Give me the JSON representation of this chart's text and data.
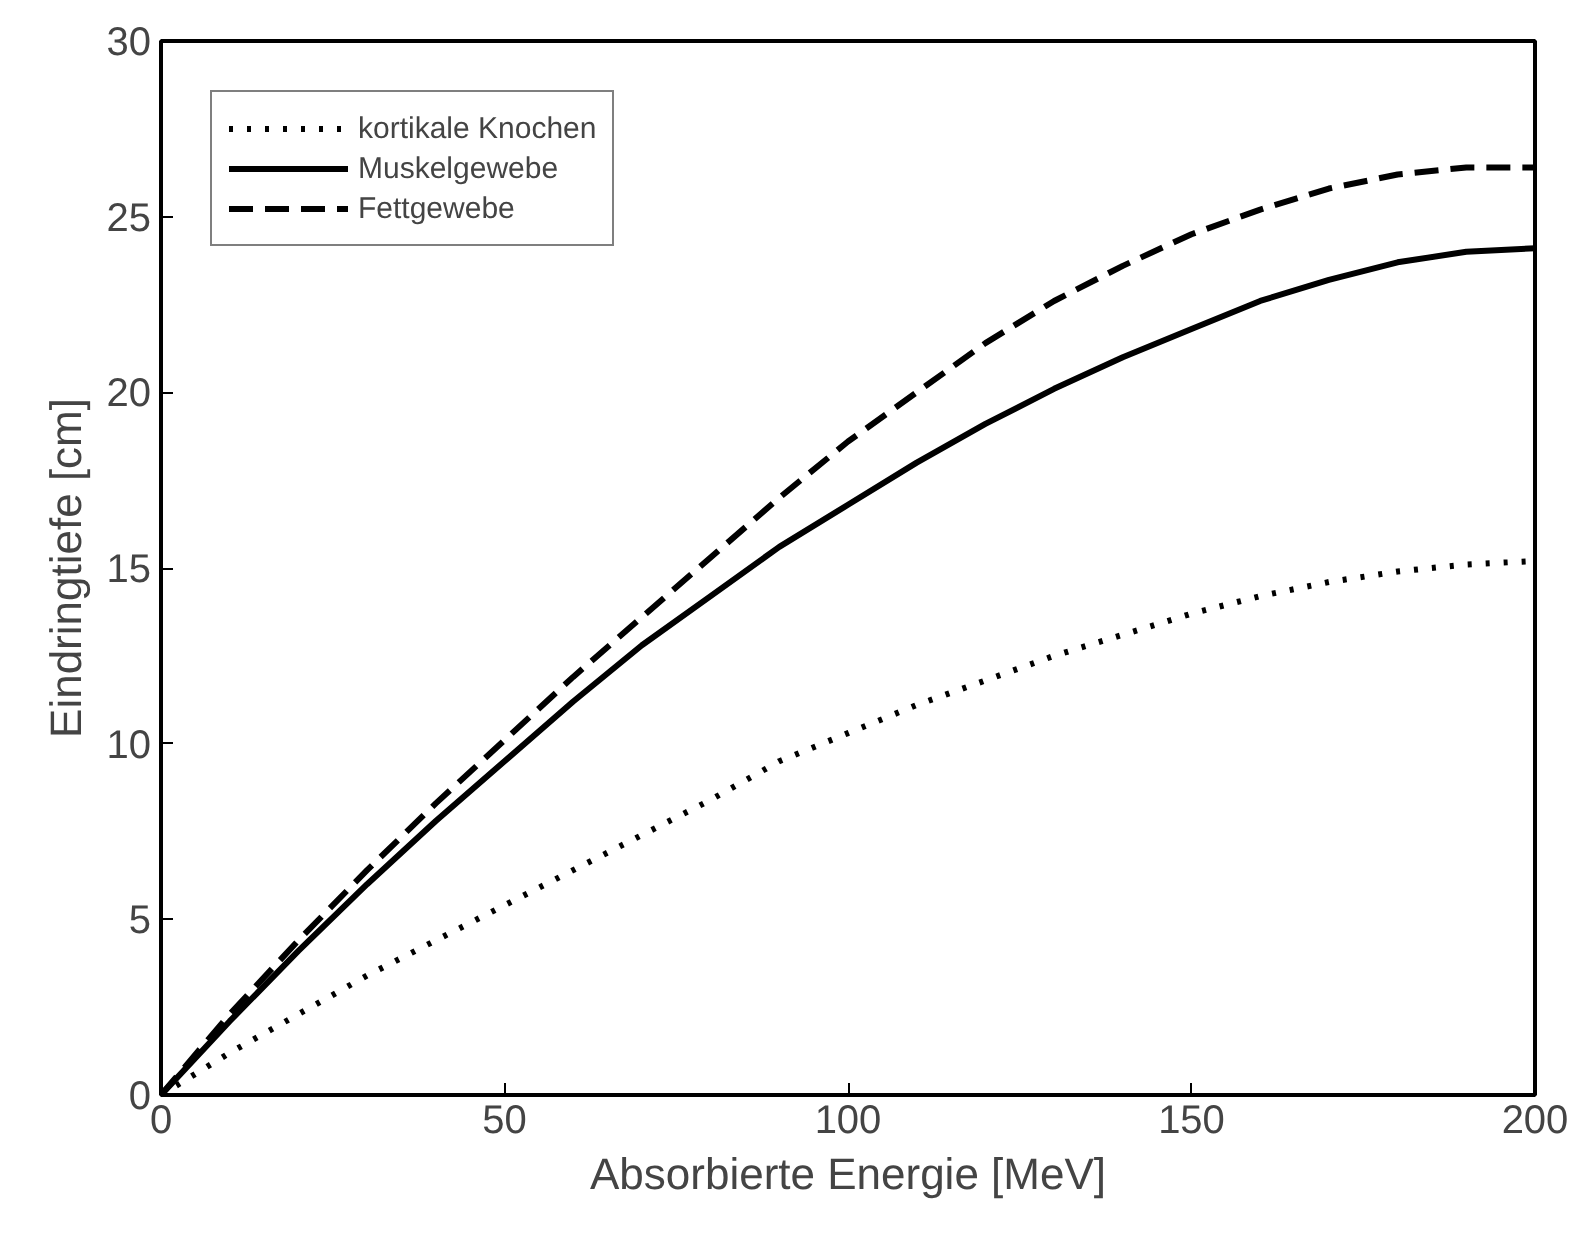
{
  "chart_data": {
    "type": "line",
    "xlabel": "Absorbierte Energie [MeV]",
    "ylabel": "Eindringtiefe [cm]",
    "x": [
      0,
      10,
      20,
      30,
      40,
      50,
      60,
      70,
      80,
      90,
      100,
      110,
      120,
      130,
      140,
      150,
      160,
      170,
      180,
      190,
      200
    ],
    "series": [
      {
        "name": "kortikale Knochen",
        "color": "#000000",
        "line_style": "dotted",
        "values": [
          0,
          1.2,
          2.3,
          3.4,
          4.4,
          5.4,
          6.4,
          7.4,
          8.4,
          9.5,
          10.3,
          11.1,
          11.8,
          12.5,
          13.1,
          13.7,
          14.2,
          14.6,
          14.9,
          15.1,
          15.2
        ]
      },
      {
        "name": "Muskelgewebe",
        "color": "#000000",
        "line_style": "solid",
        "values": [
          0,
          2.1,
          4.1,
          6.0,
          7.8,
          9.5,
          11.2,
          12.8,
          14.2,
          15.6,
          16.8,
          18.0,
          19.1,
          20.1,
          21.0,
          21.8,
          22.6,
          23.2,
          23.7,
          24.0,
          24.1
        ]
      },
      {
        "name": "Fettgewebe",
        "color": "#000000",
        "line_style": "dashed",
        "values": [
          0,
          2.3,
          4.4,
          6.4,
          8.3,
          10.1,
          11.9,
          13.6,
          15.3,
          17.0,
          18.6,
          20.0,
          21.4,
          22.6,
          23.6,
          24.5,
          25.2,
          25.8,
          26.2,
          26.4,
          26.4
        ]
      }
    ],
    "xlim": [
      0,
      200
    ],
    "xticks": [
      0,
      50,
      100,
      150,
      200
    ],
    "ylim": [
      0,
      30
    ],
    "yticks": [
      0,
      5,
      10,
      15,
      20,
      25,
      30
    ],
    "grid": false,
    "legend": "top left"
  }
}
